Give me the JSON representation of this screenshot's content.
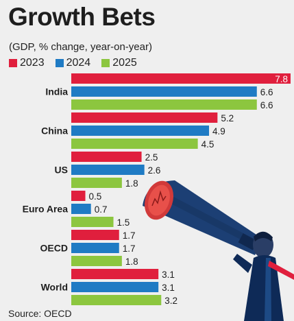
{
  "chart_data": {
    "type": "bar",
    "orientation": "horizontal",
    "title": "Growth Bets",
    "subtitle": "(GDP, % change, year-on-year)",
    "categories": [
      "India",
      "China",
      "US",
      "Euro Area",
      "OECD",
      "World"
    ],
    "series": [
      {
        "name": "2023",
        "color": "#e01f3d",
        "values": [
          7.8,
          5.2,
          2.5,
          0.5,
          1.7,
          3.1
        ]
      },
      {
        "name": "2024",
        "color": "#1f7bc4",
        "values": [
          6.6,
          4.9,
          2.6,
          0.7,
          1.7,
          3.1
        ]
      },
      {
        "name": "2025",
        "color": "#8cc63f",
        "values": [
          6.6,
          4.5,
          1.8,
          1.5,
          1.8,
          3.2
        ]
      }
    ],
    "xlim": [
      0,
      7.8
    ],
    "grid": false,
    "legend_position": "top-left",
    "source": "Source: OECD"
  },
  "illustration": {
    "description": "businessman with telescope",
    "icon": "telescope-man-icon",
    "colors": {
      "telescope": "#1c3f74",
      "suit": "#0e2a57",
      "tie": "#e01f3d",
      "lens": "#d13a3a"
    }
  }
}
